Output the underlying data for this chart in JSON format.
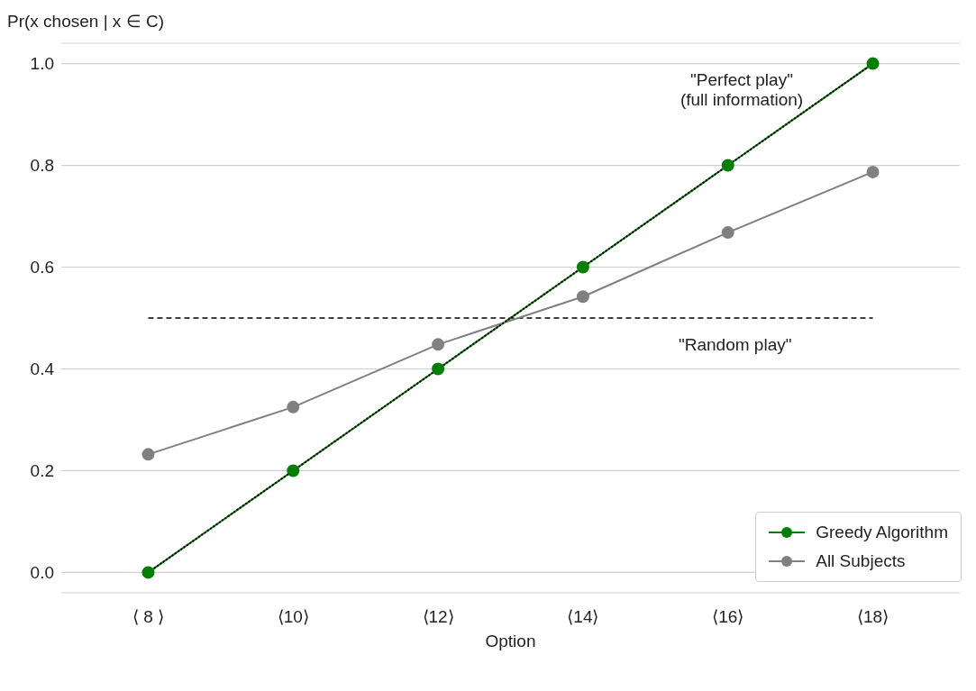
{
  "chart_data": {
    "type": "line",
    "xlabel": "Option",
    "ylabel": "Pr(x chosen | x ∈ C)",
    "categories": [
      "⟨ 8 ⟩",
      "⟨10⟩",
      "⟨12⟩",
      "⟨14⟩",
      "⟨16⟩",
      "⟨18⟩"
    ],
    "series": [
      {
        "name": "Greedy Algorithm",
        "color": "#008000",
        "values": [
          0.0,
          0.2,
          0.4,
          0.6,
          0.8,
          1.0
        ]
      },
      {
        "name": "All Subjects",
        "color": "#808080",
        "values": [
          0.232,
          0.325,
          0.448,
          0.542,
          0.668,
          0.787
        ]
      },
      {
        "color": "#000000",
        "values": [
          0.0,
          0.2,
          0.4,
          0.6,
          0.8,
          1.0
        ],
        "line_style": "dotted",
        "marker": "none"
      }
    ],
    "ylim": [
      -0.04,
      1.04
    ],
    "yticks": [
      {
        "value": 0,
        "label": "0.0"
      },
      0.2,
      0.4,
      0.6,
      0.8,
      {
        "value": 1,
        "label": "1.0"
      }
    ],
    "ref_lines": [
      {
        "axis": "y",
        "value": 0.5,
        "label": "\"Random play\"",
        "color": "#000000",
        "line_style": "dashed"
      }
    ],
    "annotations": [
      "\"Perfect play\"\n(full information)"
    ],
    "grid": "y",
    "legend": "bottom right",
    "marker": "circle",
    "line_style": "solid"
  }
}
